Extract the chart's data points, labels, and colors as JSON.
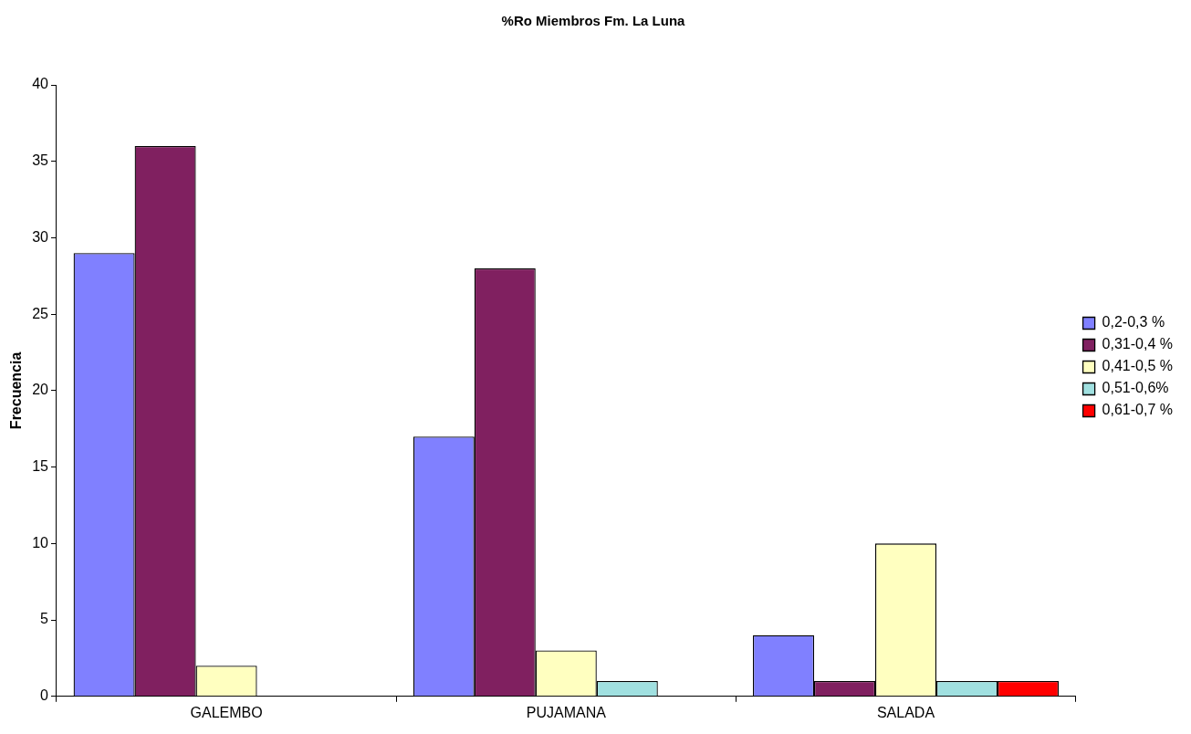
{
  "chart_data": {
    "type": "bar",
    "title": "%Ro Miembros Fm. La Luna",
    "ylabel": "Frecuencia",
    "categories": [
      "GALEMBO",
      "PUJAMANA",
      "SALADA"
    ],
    "series": [
      {
        "name": "0,2-0,3 %",
        "color": "#8080ff",
        "values": [
          29,
          17,
          4
        ]
      },
      {
        "name": "0,31-0,4 %",
        "color": "#802060",
        "values": [
          36,
          28,
          1
        ]
      },
      {
        "name": "0,41-0,5 %",
        "color": "#ffffc0",
        "values": [
          2,
          3,
          10
        ]
      },
      {
        "name": "0,51-0,6%",
        "color": "#a0e0e0",
        "values": [
          null,
          1,
          1
        ]
      },
      {
        "name": "0,61-0,7 %",
        "color": "#ff0000",
        "values": [
          null,
          null,
          1
        ]
      }
    ],
    "ylim": [
      0,
      40
    ],
    "yticks": [
      0,
      5,
      10,
      15,
      20,
      25,
      30,
      35,
      40
    ],
    "grid": false,
    "legend": "right"
  }
}
